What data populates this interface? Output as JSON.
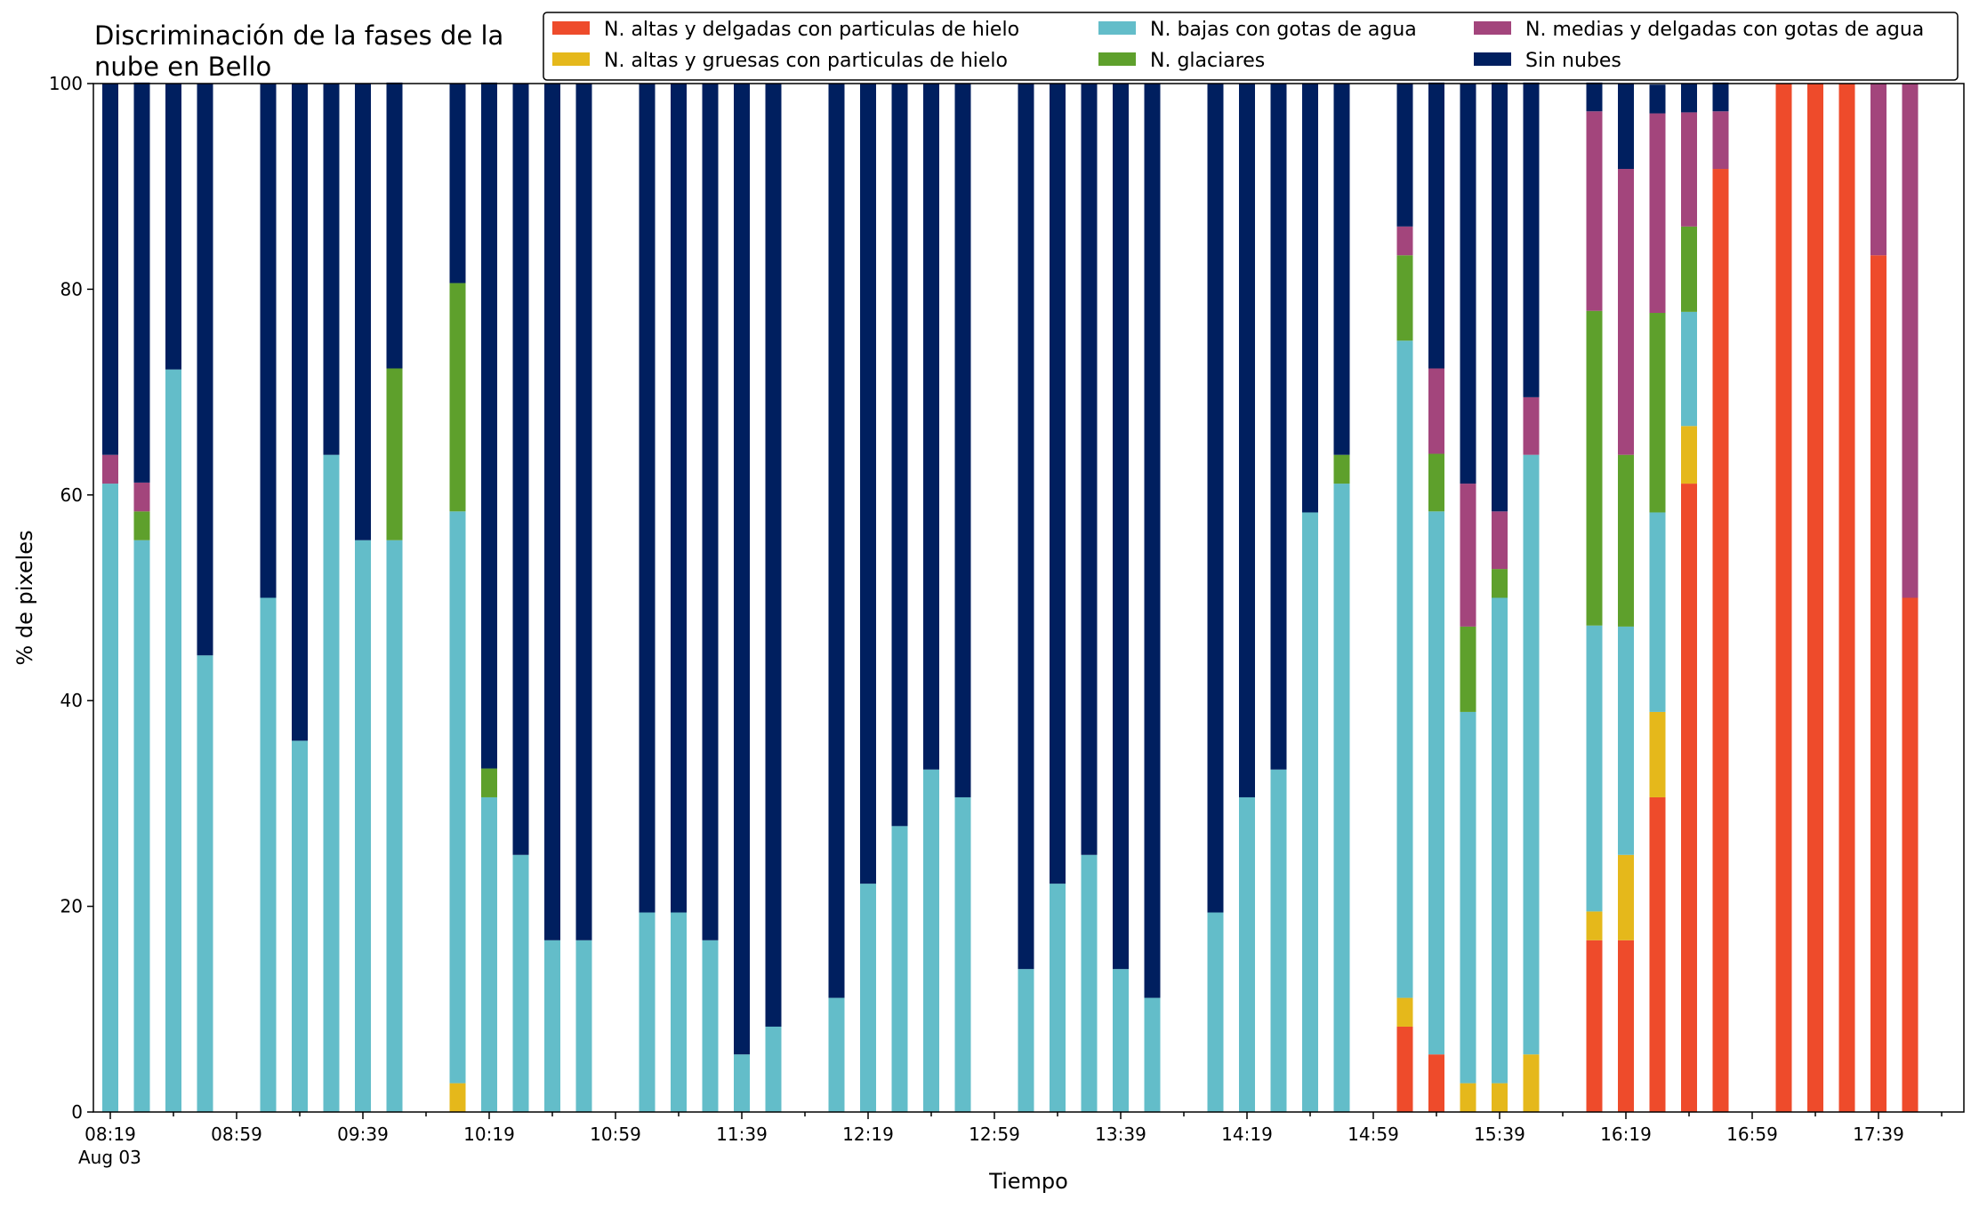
{
  "chart_data": {
    "type": "bar",
    "stacked": true,
    "title": "Discriminación de la fases de la\nnube en Bello",
    "xlabel": "Tiempo",
    "ylabel": "% de pixeles",
    "ylim": [
      0,
      100
    ],
    "yticks": [
      0,
      20,
      40,
      60,
      80,
      100
    ],
    "grid": false,
    "legend_position": "top-right",
    "x_start": "08:19",
    "x_step_minutes": 10,
    "x_count": 59,
    "x_tick_labels": [
      "08:19",
      "08:59",
      "09:39",
      "10:19",
      "10:59",
      "11:39",
      "12:19",
      "12:59",
      "13:39",
      "14:19",
      "14:59",
      "15:39",
      "16:19",
      "16:59",
      "17:39"
    ],
    "x_date_label": "Aug 03",
    "series": [
      {
        "name": "N. altas y delgadas con particulas de hielo",
        "color": "#ee4b2b",
        "values": [
          0,
          0,
          0,
          0,
          null,
          0,
          0,
          0,
          0,
          0,
          null,
          0,
          0,
          0,
          0,
          0,
          null,
          0,
          0,
          0,
          0,
          0,
          null,
          0,
          0,
          0,
          0,
          0,
          null,
          0,
          0,
          0,
          0,
          0,
          null,
          0,
          0,
          0,
          0,
          0,
          null,
          8.3,
          5.6,
          0,
          0,
          0,
          null,
          16.7,
          16.7,
          30.6,
          61.1,
          91.7,
          null,
          100,
          100,
          100,
          83.3,
          50.0,
          null
        ]
      },
      {
        "name": "N. altas y gruesas con particulas de hielo",
        "color": "#e5b81b",
        "values": [
          0,
          0,
          0,
          0,
          null,
          0,
          0,
          0,
          0,
          0,
          null,
          2.8,
          0,
          0,
          0,
          0,
          null,
          0,
          0,
          0,
          0,
          0,
          null,
          0,
          0,
          0,
          0,
          0,
          null,
          0,
          0,
          0,
          0,
          0,
          null,
          0,
          0,
          0,
          0,
          0,
          null,
          2.8,
          0,
          2.8,
          2.8,
          5.6,
          null,
          2.8,
          8.3,
          8.3,
          5.6,
          0,
          null,
          0,
          0,
          0,
          0,
          0,
          null
        ]
      },
      {
        "name": "N. bajas con gotas de agua",
        "color": "#63bdc9",
        "values": [
          61.1,
          55.6,
          72.2,
          44.4,
          null,
          50.0,
          36.1,
          63.9,
          55.6,
          55.6,
          null,
          55.6,
          30.6,
          25.0,
          16.7,
          16.7,
          null,
          19.4,
          19.4,
          16.7,
          5.6,
          8.3,
          null,
          11.1,
          22.2,
          27.8,
          33.3,
          30.6,
          null,
          13.9,
          22.2,
          25.0,
          13.9,
          11.1,
          null,
          19.4,
          30.6,
          33.3,
          58.3,
          61.1,
          null,
          63.9,
          52.8,
          36.1,
          47.2,
          58.3,
          null,
          27.8,
          22.2,
          19.4,
          11.1,
          0,
          null,
          0,
          0,
          0,
          0,
          0,
          null
        ]
      },
      {
        "name": "N. glaciares",
        "color": "#5ea02c",
        "values": [
          0,
          2.8,
          0,
          0,
          null,
          0,
          0,
          0,
          0,
          16.7,
          null,
          22.2,
          2.8,
          0,
          0,
          0,
          null,
          0,
          0,
          0,
          0,
          0,
          null,
          0,
          0,
          0,
          0,
          0,
          null,
          0,
          0,
          0,
          0,
          0,
          null,
          0,
          0,
          0,
          0,
          2.8,
          null,
          8.3,
          5.6,
          8.3,
          2.8,
          0,
          null,
          30.6,
          16.7,
          19.4,
          8.3,
          0,
          null,
          0,
          0,
          0,
          0,
          0,
          null
        ]
      },
      {
        "name": "N. medias y delgadas con gotas de agua",
        "color": "#a3457c",
        "values": [
          2.8,
          2.8,
          0,
          0,
          null,
          0,
          0,
          0,
          0,
          0,
          null,
          0,
          0,
          0,
          0,
          0,
          null,
          0,
          0,
          0,
          0,
          0,
          null,
          0,
          0,
          0,
          0,
          0,
          null,
          0,
          0,
          0,
          0,
          0,
          null,
          0,
          0,
          0,
          0,
          0,
          null,
          2.8,
          8.3,
          13.9,
          5.6,
          5.6,
          null,
          19.4,
          27.8,
          19.4,
          11.1,
          5.6,
          null,
          0,
          0,
          0,
          16.7,
          50.0,
          null
        ]
      },
      {
        "name": "Sin nubes",
        "color": "#001f5f",
        "values": [
          36.1,
          38.9,
          27.8,
          55.6,
          null,
          50.0,
          63.9,
          36.1,
          44.4,
          27.8,
          null,
          19.4,
          66.7,
          75.0,
          83.3,
          83.3,
          null,
          80.6,
          80.6,
          83.3,
          94.4,
          91.7,
          null,
          88.9,
          77.8,
          72.2,
          66.7,
          69.4,
          null,
          86.1,
          77.8,
          75.0,
          86.1,
          88.9,
          null,
          80.6,
          69.4,
          66.7,
          41.7,
          36.1,
          null,
          13.9,
          27.8,
          38.9,
          41.7,
          30.6,
          null,
          2.8,
          8.3,
          2.8,
          2.8,
          2.8,
          null,
          0,
          0,
          0,
          0,
          0,
          null
        ]
      }
    ]
  }
}
